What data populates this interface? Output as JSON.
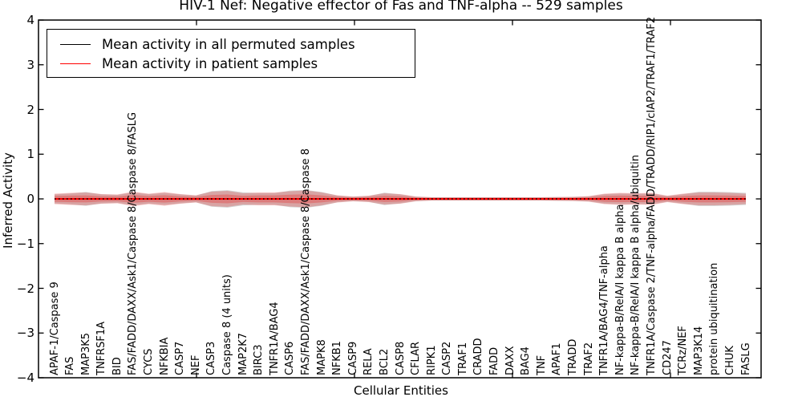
{
  "title": "HIV-1 Nef: Negative effector of Fas and TNF-alpha -- 529 samples",
  "legend": {
    "entries": [
      {
        "label": "Mean activity in all permuted samples",
        "color": "#000000"
      },
      {
        "label": "Mean activity in patient samples",
        "color": "#ff0000"
      }
    ]
  },
  "chart_data": {
    "type": "line",
    "title": "HIV-1 Nef: Negative effector of Fas and TNF-alpha -- 529 samples",
    "xlabel": "Cellular Entities",
    "ylabel": "Inferred Activity",
    "ylim": [
      -4,
      4
    ],
    "yticks": [
      4,
      3,
      2,
      1,
      0,
      -1,
      -2,
      -3,
      -4
    ],
    "grid": false,
    "legend_position": "upper left",
    "categories": [
      "APAF-1/Caspase 9",
      "FAS",
      "MAP3K5",
      "TNFRSF1A",
      "BID",
      "FAS/FADD/DAXX/Ask1/Caspase 8/Caspase 8/FASLG",
      "CYCS",
      "NFKBIA",
      "CASP7",
      "NEF",
      "CASP3",
      "Caspase 8 (4 units)",
      "MAP2K7",
      "BIRC3",
      "TNFR1A/BAG4",
      "CASP6",
      "FAS/FADD/DAXX/Ask1/Caspase 8/Caspase 8",
      "MAPK8",
      "NFKB1",
      "CASP9",
      "RELA",
      "BCL2",
      "CASP8",
      "CFLAR",
      "RIPK1",
      "CASP2",
      "TRAF1",
      "CRADD",
      "FADD",
      "DAXX",
      "BAG4",
      "TNF",
      "APAF1",
      "TRADD",
      "TRAF2",
      "TNFR1A/BAG4/TNF-alpha",
      "NF-kappa-B/RelA/I kappa B alpha",
      "NF-kappa-B/RelA/I kappa B alpha/ubiquitin",
      "TNFR1A/Caspase 2/TNF-alpha/FADD/TRADD/RIP1/cIAP2/TRAF1/TRAF2",
      "CD247",
      "TCRz/NEF",
      "MAP3K14",
      "protein ubiquitination",
      "CHUK",
      "FASLG"
    ],
    "series": [
      {
        "name": "Mean activity in all permuted samples",
        "color": "#000000",
        "linestyle": "dotted",
        "values": [
          0,
          0,
          0,
          0,
          0,
          0,
          0,
          0,
          0,
          0,
          0,
          0,
          0,
          0,
          0,
          0,
          0,
          0,
          0,
          0,
          0,
          0,
          0,
          0,
          0,
          0,
          0,
          0,
          0,
          0,
          0,
          0,
          0,
          0,
          0,
          0,
          0,
          0,
          0,
          0,
          0,
          0,
          0,
          0,
          0
        ]
      },
      {
        "name": "Mean activity in patient samples",
        "color": "#ff0000",
        "linestyle": "solid",
        "values": [
          0,
          0,
          0,
          0,
          0,
          0,
          0,
          0,
          0,
          0,
          0,
          0,
          0,
          0,
          0,
          0,
          0,
          0,
          0,
          0,
          0,
          0,
          0,
          0,
          0,
          0,
          0,
          0,
          0,
          0,
          0,
          0,
          0,
          0,
          0,
          0,
          0,
          0,
          0,
          0,
          0,
          0,
          0,
          0,
          0
        ]
      }
    ],
    "bands": {
      "patient_spread": [
        0.117,
        0.135,
        0.143,
        0.108,
        0.099,
        0.161,
        0.117,
        0.152,
        0.108,
        0.081,
        0.161,
        0.179,
        0.126,
        0.143,
        0.143,
        0.17,
        0.188,
        0.143,
        0.081,
        0.054,
        0.072,
        0.126,
        0.108,
        0.054,
        0.039,
        0.039,
        0.039,
        0.039,
        0.039,
        0.039,
        0.039,
        0.039,
        0.043,
        0.047,
        0.063,
        0.117,
        0.135,
        0.126,
        0.135,
        0.072,
        0.117,
        0.143,
        0.143,
        0.135,
        0.117
      ],
      "permuted_spread": [
        0.1,
        0.12,
        0.155,
        0.1,
        0.09,
        0.145,
        0.105,
        0.135,
        0.1,
        0.075,
        0.175,
        0.195,
        0.145,
        0.13,
        0.13,
        0.185,
        0.2,
        0.155,
        0.075,
        0.05,
        0.065,
        0.14,
        0.1,
        0.05,
        0.035,
        0.035,
        0.035,
        0.035,
        0.035,
        0.035,
        0.035,
        0.035,
        0.04,
        0.042,
        0.057,
        0.105,
        0.12,
        0.115,
        0.12,
        0.065,
        0.105,
        0.16,
        0.16,
        0.15,
        0.135
      ],
      "patient_color": "#e34242",
      "permuted_color": "#8c8c8c"
    }
  }
}
